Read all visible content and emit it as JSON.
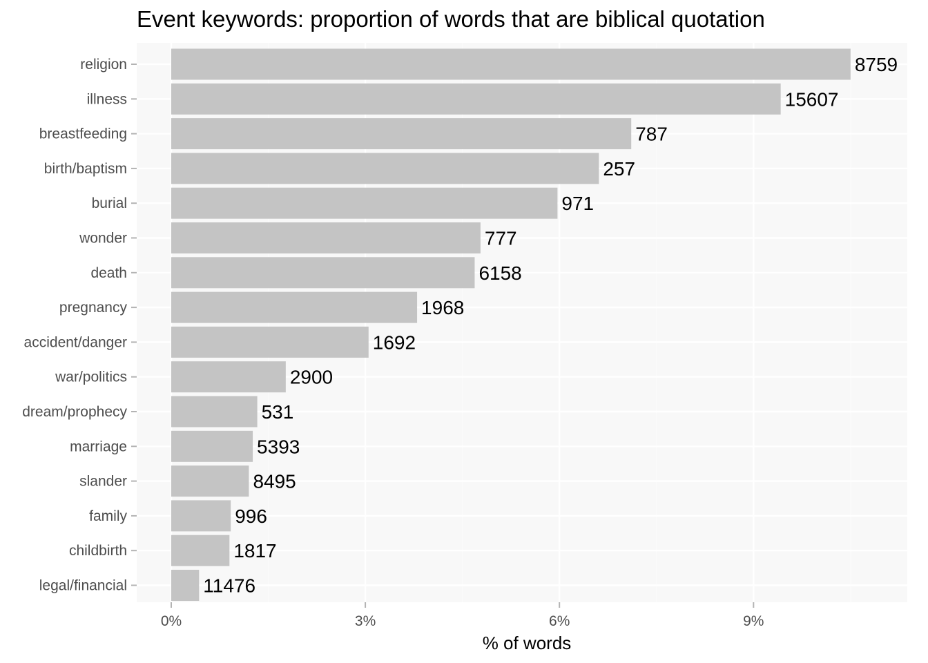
{
  "chart_data": {
    "type": "bar",
    "orientation": "horizontal",
    "title": "Event keywords: proportion of words that are biblical quotation",
    "xlabel": "% of words",
    "ylabel": "",
    "xlim": [
      0,
      11.2
    ],
    "x_ticks": [
      0,
      3,
      6,
      9
    ],
    "x_tick_labels": [
      "0%",
      "3%",
      "6%",
      "9%"
    ],
    "grid": true,
    "categories": [
      "religion",
      "illness",
      "breastfeeding",
      "birth/baptism",
      "burial",
      "wonder",
      "death",
      "pregnancy",
      "accident/danger",
      "war/politics",
      "dream/prophecy",
      "marriage",
      "slander",
      "family",
      "childbirth",
      "legal/financial"
    ],
    "values": [
      10.5,
      9.42,
      7.11,
      6.61,
      5.97,
      4.78,
      4.69,
      3.8,
      3.05,
      1.77,
      1.33,
      1.26,
      1.2,
      0.92,
      0.9,
      0.43
    ],
    "data_labels": [
      "8759",
      "15607",
      "787",
      "257",
      "971",
      "777",
      "6158",
      "1968",
      "1692",
      "2900",
      "531",
      "5393",
      "8495",
      "996",
      "1817",
      "11476"
    ],
    "colors": {
      "bar": "#c4c4c4",
      "panel": "#f8f8f8",
      "grid_major": "#ffffff",
      "grid_minor": "#fbfbfb",
      "tick": "#b3b3b3"
    }
  }
}
